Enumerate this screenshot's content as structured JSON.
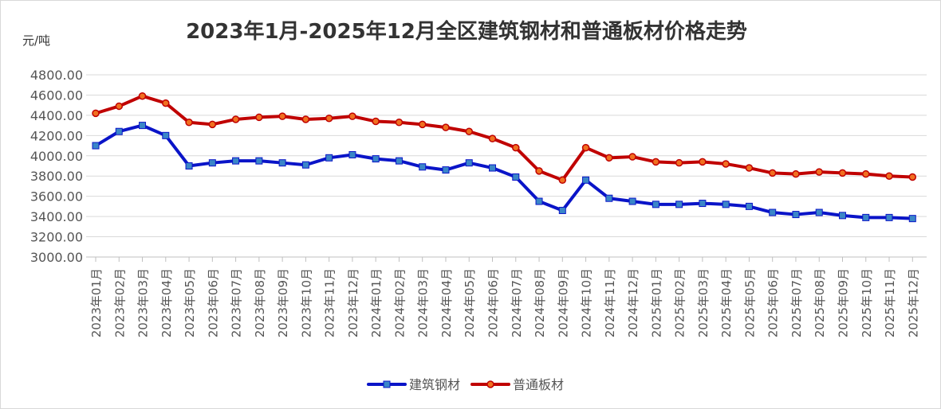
{
  "chart_data": {
    "type": "line",
    "title": "2023年1月-2025年12月全区建筑钢材和普通板材价格走势",
    "ylabel": "元/吨",
    "xlabel": "",
    "ylim": [
      3000,
      4800
    ],
    "yticks": [
      "3000.00",
      "3200.00",
      "3400.00",
      "3600.00",
      "3800.00",
      "4000.00",
      "4200.00",
      "4400.00",
      "4600.00",
      "4800.00"
    ],
    "grid": "horizontal",
    "legend_position": "bottom",
    "categories": [
      "2023年01月",
      "2023年02月",
      "2023年03月",
      "2023年04月",
      "2023年05月",
      "2023年06月",
      "2023年07月",
      "2023年08月",
      "2023年09月",
      "2023年10月",
      "2023年11月",
      "2023年12月",
      "2024年01月",
      "2024年02月",
      "2024年03月",
      "2024年04月",
      "2024年05月",
      "2024年06月",
      "2024年07月",
      "2024年08月",
      "2024年09月",
      "2024年10月",
      "2024年11月",
      "2024年12月",
      "2025年01月",
      "2025年02月",
      "2025年03月",
      "2025年04月",
      "2025年05月",
      "2025年06月",
      "2025年07月",
      "2025年08月",
      "2025年09月",
      "2025年10月",
      "2025年11月",
      "2025年12月"
    ],
    "series": [
      {
        "name": "建筑钢材",
        "color": "#0a14c8",
        "marker": "square",
        "marker_color": "#3a86c8",
        "values": [
          4100,
          4240,
          4300,
          4200,
          3900,
          3930,
          3950,
          3950,
          3930,
          3910,
          3980,
          4010,
          3970,
          3950,
          3890,
          3860,
          3930,
          3880,
          3790,
          3550,
          3460,
          3760,
          3580,
          3550,
          3520,
          3520,
          3530,
          3520,
          3500,
          3440,
          3420,
          3440,
          3410,
          3390,
          3390,
          3380
        ]
      },
      {
        "name": "普通板材",
        "color": "#c00000",
        "marker": "circle",
        "marker_color": "#f07020",
        "values": [
          4420,
          4490,
          4590,
          4520,
          4330,
          4310,
          4360,
          4380,
          4390,
          4360,
          4370,
          4390,
          4340,
          4330,
          4310,
          4280,
          4240,
          4170,
          4080,
          3850,
          3760,
          4080,
          3980,
          3990,
          3940,
          3930,
          3940,
          3920,
          3880,
          3830,
          3820,
          3840,
          3830,
          3820,
          3800,
          3790
        ]
      }
    ]
  }
}
